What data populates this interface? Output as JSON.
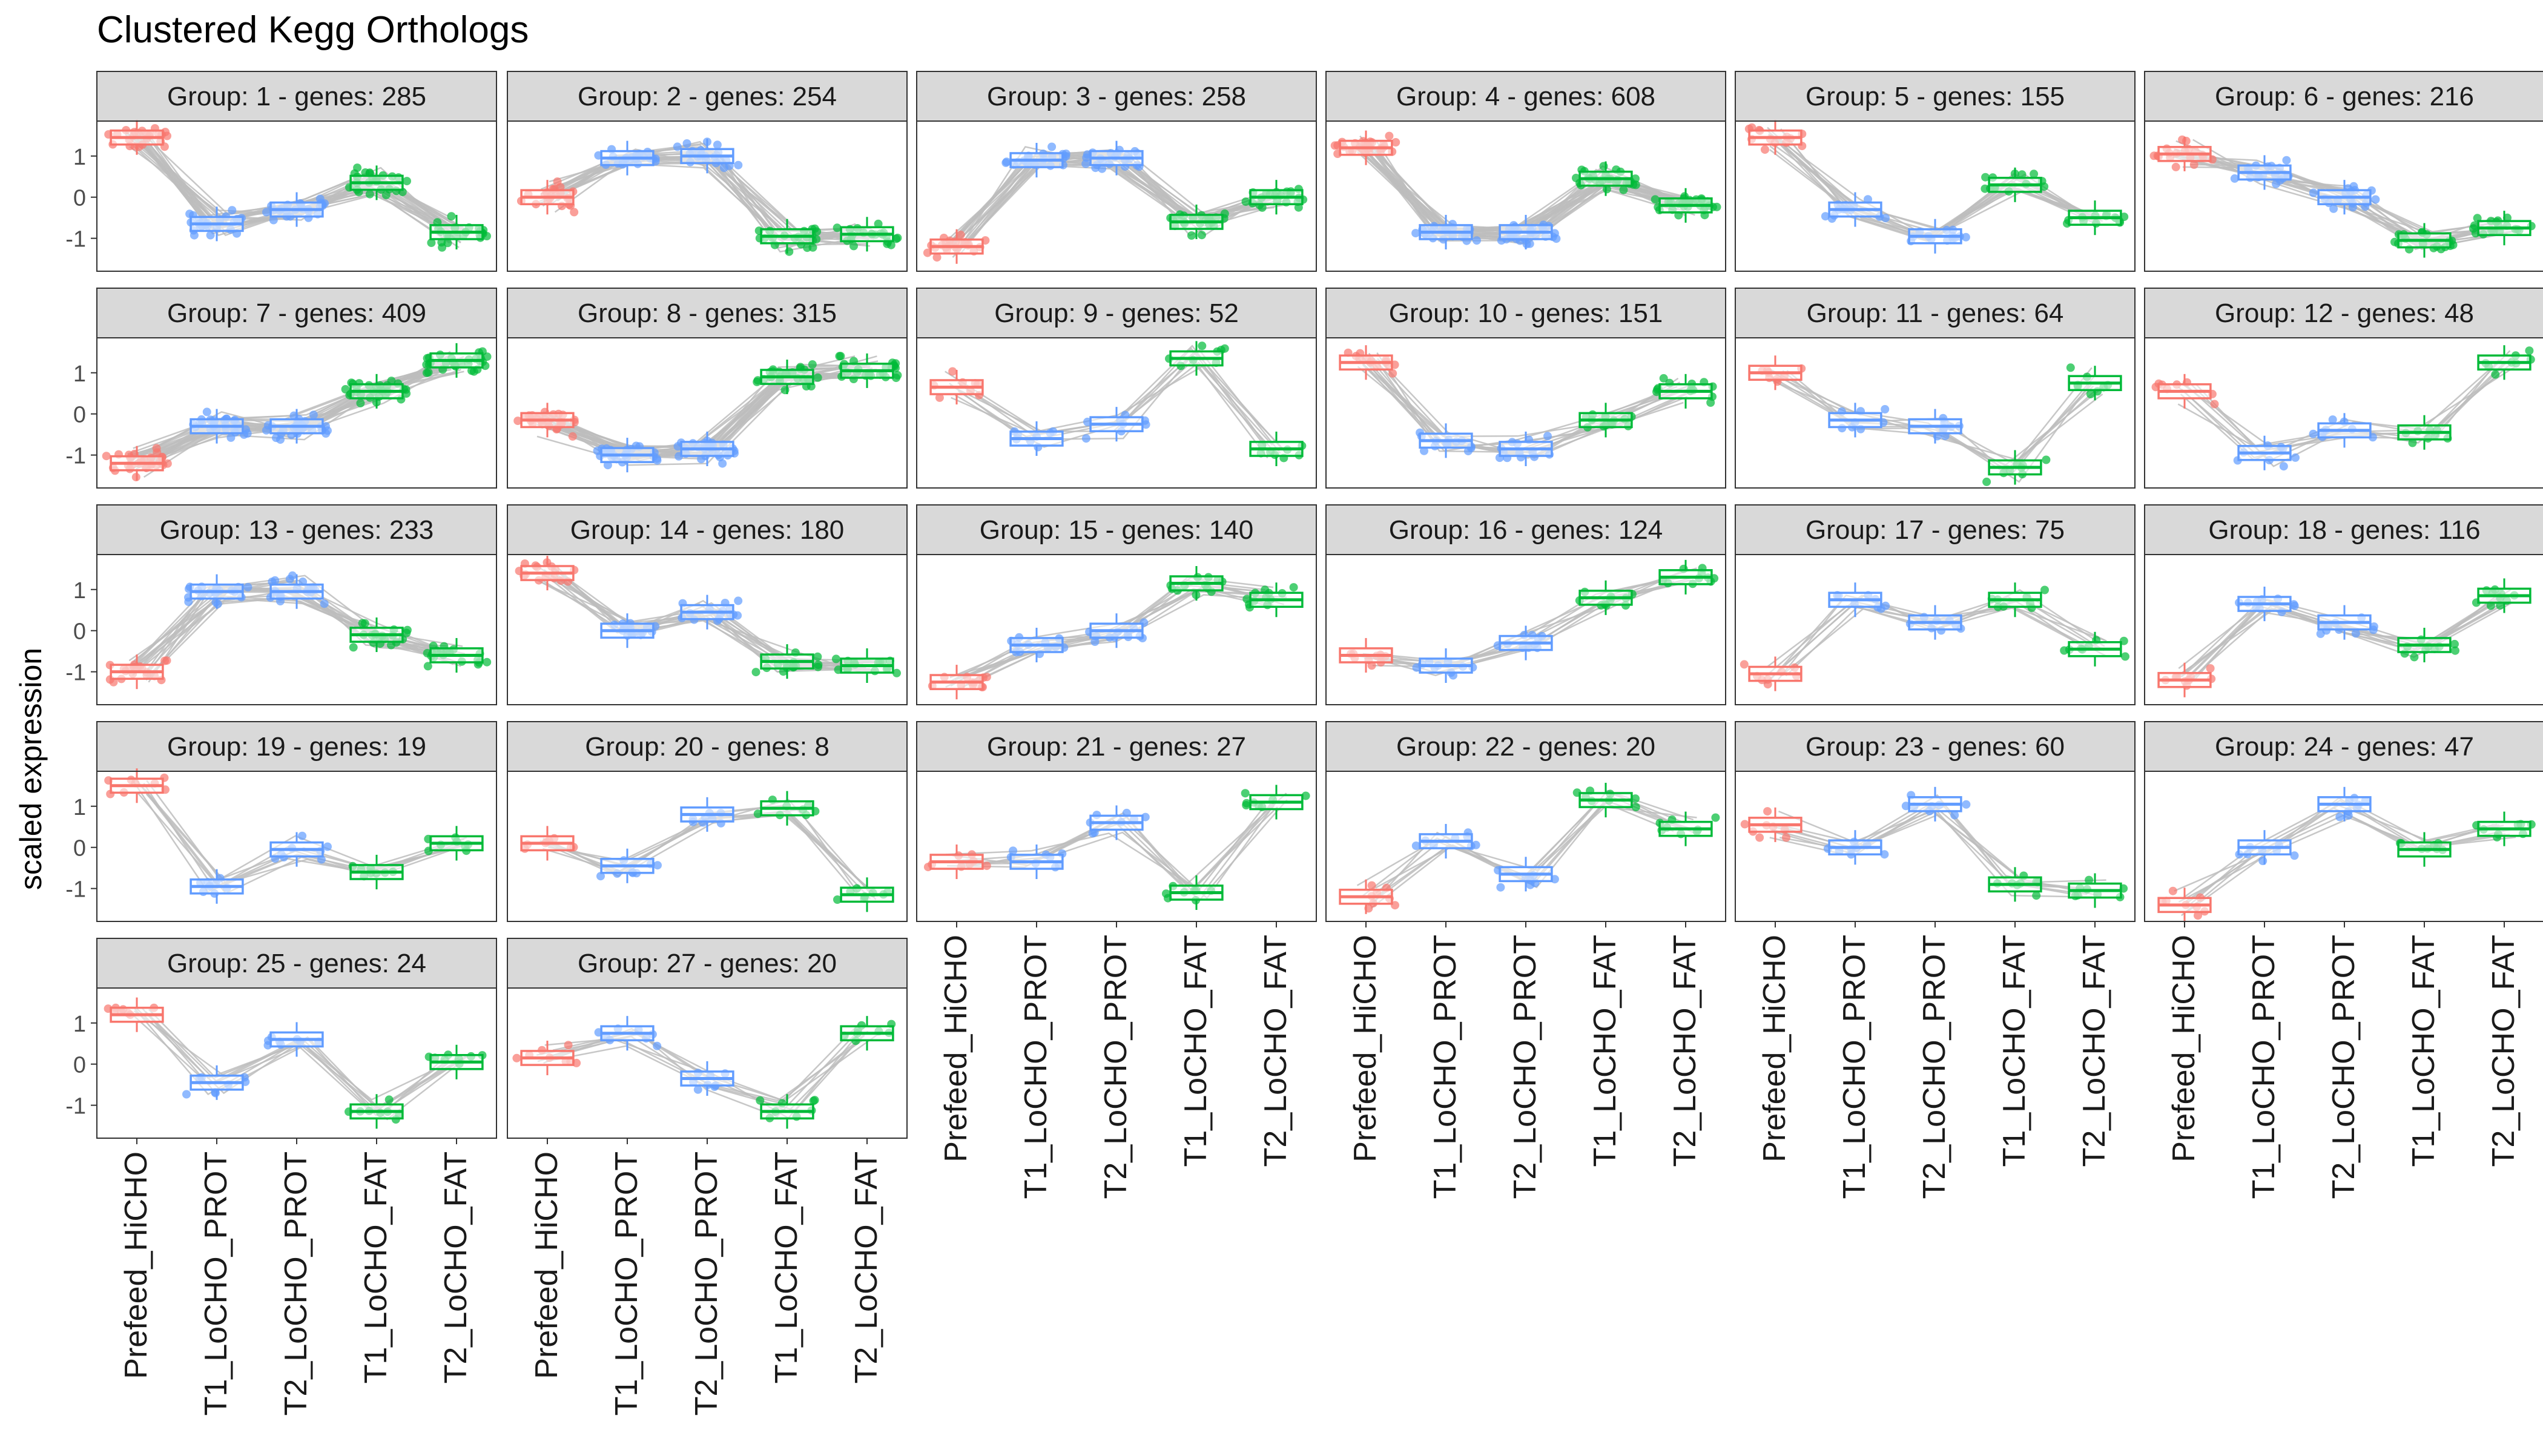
{
  "chart_data": {
    "type": "box",
    "title": "Clustered Kegg Orthologs",
    "xlabel": "",
    "ylabel": "scaled expression",
    "categories": [
      "Prefeed_HiCHO",
      "T1_LoCHO_PROT",
      "T2_LoCHO_PROT",
      "T1_LoCHO_FAT",
      "T2_LoCHO_FAT"
    ],
    "y_ticks": [
      "1",
      "0",
      "-1"
    ],
    "ylim": [
      -1.8,
      1.85
    ],
    "grid": false,
    "colors": {
      "Prefeed": "#F8766D",
      "LoCHO_PROT": "#619CFF",
      "LoCHO_FAT": "#00BA38",
      "line": "#BDBDBD",
      "strip": "#D9D9D9"
    },
    "panels": [
      {
        "label": "Group:  1 - genes: 285",
        "medians": [
          1.45,
          -0.65,
          -0.3,
          0.35,
          -0.85
        ]
      },
      {
        "label": "Group:  2 - genes: 254",
        "medians": [
          0.0,
          0.95,
          1.0,
          -0.95,
          -0.9
        ]
      },
      {
        "label": "Group:  3 - genes: 258",
        "medians": [
          -1.2,
          0.9,
          0.95,
          -0.6,
          0.0
        ]
      },
      {
        "label": "Group:  4 - genes: 608",
        "medians": [
          1.2,
          -0.85,
          -0.85,
          0.45,
          -0.2
        ]
      },
      {
        "label": "Group:  5 - genes: 155",
        "medians": [
          1.45,
          -0.3,
          -0.95,
          0.3,
          -0.5
        ]
      },
      {
        "label": "Group:  6 - genes: 216",
        "medians": [
          1.05,
          0.6,
          0.0,
          -1.05,
          -0.75
        ]
      },
      {
        "label": "Group:  7 - genes: 409",
        "medians": [
          -1.2,
          -0.3,
          -0.3,
          0.55,
          1.3
        ]
      },
      {
        "label": "Group:  8 - genes: 315",
        "medians": [
          -0.15,
          -1.0,
          -0.85,
          0.9,
          1.05
        ]
      },
      {
        "label": "Group:  9 - genes: 52",
        "medians": [
          0.65,
          -0.6,
          -0.25,
          1.35,
          -0.85
        ]
      },
      {
        "label": "Group:  10 - genes: 151",
        "medians": [
          1.25,
          -0.65,
          -0.85,
          -0.15,
          0.55
        ]
      },
      {
        "label": "Group:  11 - genes: 64",
        "medians": [
          1.0,
          -0.15,
          -0.3,
          -1.3,
          0.75
        ]
      },
      {
        "label": "Group:  12 - genes: 48",
        "medians": [
          0.55,
          -0.95,
          -0.4,
          -0.45,
          1.25
        ]
      },
      {
        "label": "Group:  13 - genes: 233",
        "medians": [
          -1.0,
          0.95,
          0.95,
          -0.1,
          -0.6
        ]
      },
      {
        "label": "Group:  14 - genes: 180",
        "medians": [
          1.4,
          0.0,
          0.45,
          -0.75,
          -0.85
        ]
      },
      {
        "label": "Group:  15 - genes: 140",
        "medians": [
          -1.25,
          -0.35,
          0.0,
          1.15,
          0.75
        ]
      },
      {
        "label": "Group:  16 - genes: 124",
        "medians": [
          -0.6,
          -0.85,
          -0.3,
          0.8,
          1.3
        ]
      },
      {
        "label": "Group:  17 - genes: 75",
        "medians": [
          -1.05,
          0.75,
          0.2,
          0.75,
          -0.45
        ]
      },
      {
        "label": "Group:  18 - genes: 116",
        "medians": [
          -1.2,
          0.65,
          0.2,
          -0.35,
          0.85
        ]
      },
      {
        "label": "Group:  19 - genes: 19",
        "medians": [
          1.5,
          -0.95,
          -0.05,
          -0.6,
          0.1
        ]
      },
      {
        "label": "Group:  20 - genes: 8",
        "medians": [
          0.1,
          -0.45,
          0.8,
          0.95,
          -1.15
        ]
      },
      {
        "label": "Group:  21 - genes: 27",
        "medians": [
          -0.35,
          -0.35,
          0.6,
          -1.1,
          1.1
        ]
      },
      {
        "label": "Group:  22 - genes: 20",
        "medians": [
          -1.2,
          0.15,
          -0.65,
          1.15,
          0.45
        ]
      },
      {
        "label": "Group:  23 - genes: 60",
        "medians": [
          0.55,
          0.0,
          1.05,
          -0.9,
          -1.05
        ]
      },
      {
        "label": "Group:  24 - genes: 47",
        "medians": [
          -1.4,
          0.0,
          1.05,
          -0.05,
          0.45
        ]
      },
      {
        "label": "Group:  25 - genes: 24",
        "medians": [
          1.2,
          -0.45,
          0.6,
          -1.15,
          0.05
        ]
      },
      {
        "label": "Group:  27 - genes: 20",
        "medians": [
          0.15,
          0.75,
          -0.35,
          -1.15,
          0.75
        ]
      }
    ]
  }
}
